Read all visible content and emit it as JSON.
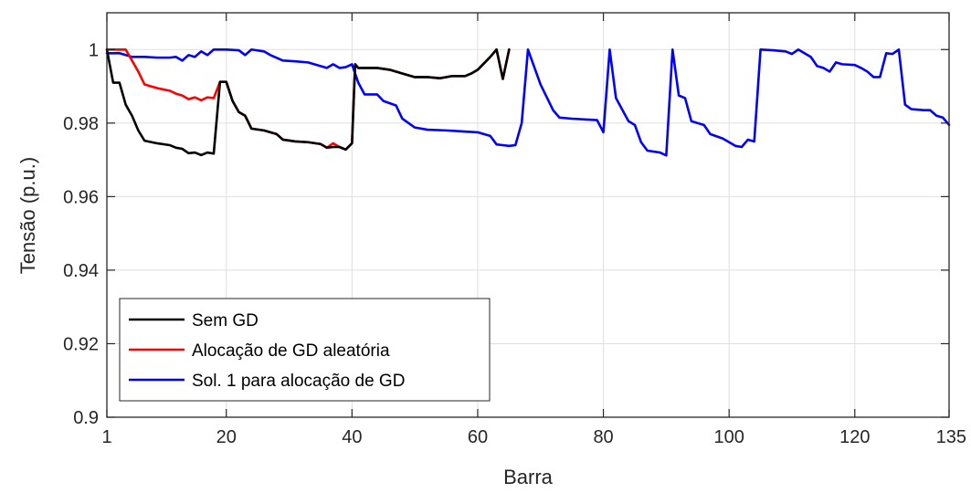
{
  "chart_data": {
    "type": "line",
    "xlabel": "Barra",
    "ylabel": "Tensão (p.u.)",
    "xlim": [
      1,
      135
    ],
    "ylim": [
      0.9,
      1.01
    ],
    "x_ticks": [
      1,
      20,
      40,
      60,
      80,
      100,
      120,
      135
    ],
    "y_ticks": [
      0.9,
      0.92,
      0.94,
      0.96,
      0.98,
      1.0
    ],
    "y_tick_labels": [
      "0.9",
      "0.92",
      "0.94",
      "0.96",
      "0.98",
      "1"
    ],
    "grid": true,
    "legend_position": "bottom-left",
    "series": [
      {
        "name": "Sem GD",
        "color": "#000000",
        "points": [
          [
            1,
            1.0
          ],
          [
            2,
            0.991
          ],
          [
            3,
            0.991
          ],
          [
            4,
            0.985
          ],
          [
            5,
            0.982
          ],
          [
            6,
            0.978
          ],
          [
            7,
            0.9752
          ],
          [
            9,
            0.9745
          ],
          [
            11,
            0.974
          ],
          [
            12,
            0.9733
          ],
          [
            13,
            0.973
          ],
          [
            14,
            0.9718
          ],
          [
            15,
            0.972
          ],
          [
            16,
            0.9713
          ],
          [
            17,
            0.972
          ],
          [
            18,
            0.9717
          ],
          [
            19,
            0.9912
          ],
          [
            20,
            0.9912
          ],
          [
            21,
            0.986
          ],
          [
            22,
            0.983
          ],
          [
            23,
            0.982
          ],
          [
            24,
            0.9785
          ],
          [
            26,
            0.978
          ],
          [
            28,
            0.977
          ],
          [
            29,
            0.9755
          ],
          [
            31,
            0.975
          ],
          [
            33,
            0.9748
          ],
          [
            35,
            0.9743
          ],
          [
            36,
            0.9733
          ],
          [
            37,
            0.9735
          ],
          [
            38,
            0.9735
          ],
          [
            39,
            0.9728
          ],
          [
            40,
            0.9745
          ],
          [
            40.5,
            0.996
          ],
          [
            41,
            0.995
          ],
          [
            43,
            0.995
          ],
          [
            44,
            0.995
          ],
          [
            46,
            0.9945
          ],
          [
            48,
            0.9935
          ],
          [
            50,
            0.9925
          ],
          [
            52,
            0.9925
          ],
          [
            54,
            0.9922
          ],
          [
            56,
            0.9928
          ],
          [
            58,
            0.9928
          ],
          [
            59,
            0.9935
          ],
          [
            60,
            0.9945
          ],
          [
            62,
            0.998
          ],
          [
            63,
            1.0
          ],
          [
            64,
            0.992
          ],
          [
            65,
            1.0
          ]
        ]
      },
      {
        "name": "Alocação de GD aleatória",
        "color": "#ff0000",
        "points": [
          [
            1,
            1.0
          ],
          [
            2,
            1.0
          ],
          [
            3,
            1.0
          ],
          [
            4,
            1.0
          ],
          [
            5,
            0.997
          ],
          [
            6,
            0.994
          ],
          [
            7,
            0.9905
          ],
          [
            9,
            0.9895
          ],
          [
            11,
            0.9888
          ],
          [
            12,
            0.988
          ],
          [
            13,
            0.9875
          ],
          [
            14,
            0.9865
          ],
          [
            15,
            0.987
          ],
          [
            16,
            0.9862
          ],
          [
            17,
            0.987
          ],
          [
            18,
            0.9868
          ],
          [
            19,
            0.9912
          ],
          [
            20,
            0.9912
          ],
          [
            21,
            0.986
          ],
          [
            22,
            0.983
          ],
          [
            23,
            0.982
          ],
          [
            24,
            0.9785
          ],
          [
            26,
            0.978
          ],
          [
            28,
            0.977
          ],
          [
            29,
            0.9755
          ],
          [
            31,
            0.975
          ],
          [
            33,
            0.9748
          ],
          [
            35,
            0.9743
          ],
          [
            36,
            0.9733
          ],
          [
            37,
            0.9745
          ],
          [
            38,
            0.9735
          ],
          [
            39,
            0.9728
          ],
          [
            40,
            0.9745
          ],
          [
            40.5,
            0.996
          ],
          [
            41,
            0.995
          ],
          [
            43,
            0.995
          ],
          [
            44,
            0.995
          ],
          [
            46,
            0.9945
          ],
          [
            48,
            0.9935
          ],
          [
            50,
            0.9925
          ],
          [
            52,
            0.9925
          ],
          [
            54,
            0.9922
          ],
          [
            56,
            0.9928
          ],
          [
            58,
            0.9928
          ],
          [
            59,
            0.9935
          ],
          [
            60,
            0.9945
          ],
          [
            62,
            0.998
          ],
          [
            63,
            1.0
          ],
          [
            64,
            0.992
          ],
          [
            65,
            1.0
          ]
        ]
      },
      {
        "name": "Sol. 1 para alocação de GD",
        "color": "#0000ff",
        "points": [
          [
            1,
            0.999
          ],
          [
            2,
            0.999
          ],
          [
            3,
            0.999
          ],
          [
            4,
            0.9985
          ],
          [
            5,
            0.998
          ],
          [
            7,
            0.998
          ],
          [
            9,
            0.9978
          ],
          [
            11,
            0.9978
          ],
          [
            12,
            0.998
          ],
          [
            13,
            0.997
          ],
          [
            14,
            0.9985
          ],
          [
            15,
            0.998
          ],
          [
            16,
            0.9995
          ],
          [
            17,
            0.9985
          ],
          [
            18,
            1.0
          ],
          [
            20,
            1.0
          ],
          [
            22,
            0.9998
          ],
          [
            23,
            0.9985
          ],
          [
            24,
            1.0
          ],
          [
            26,
            0.9995
          ],
          [
            27,
            0.9985
          ],
          [
            29,
            0.997
          ],
          [
            31,
            0.9968
          ],
          [
            33,
            0.9965
          ],
          [
            35,
            0.9955
          ],
          [
            36,
            0.995
          ],
          [
            37,
            0.996
          ],
          [
            38,
            0.995
          ],
          [
            39,
            0.9952
          ],
          [
            40,
            0.996
          ],
          [
            41,
            0.991
          ],
          [
            42,
            0.9878
          ],
          [
            44,
            0.9878
          ],
          [
            45,
            0.986
          ],
          [
            47,
            0.9848
          ],
          [
            48,
            0.9812
          ],
          [
            50,
            0.9788
          ],
          [
            52,
            0.9782
          ],
          [
            55,
            0.978
          ],
          [
            57,
            0.9778
          ],
          [
            60,
            0.9775
          ],
          [
            62,
            0.9765
          ],
          [
            63,
            0.9742
          ],
          [
            64,
            0.974
          ],
          [
            65,
            0.9738
          ],
          [
            66,
            0.974
          ],
          [
            67,
            0.98
          ],
          [
            68,
            1.0
          ],
          [
            70,
            0.9905
          ],
          [
            72,
            0.9835
          ],
          [
            73,
            0.9815
          ],
          [
            75,
            0.9812
          ],
          [
            77,
            0.981
          ],
          [
            79,
            0.9808
          ],
          [
            80,
            0.9775
          ],
          [
            81,
            1.0
          ],
          [
            82,
            0.9868
          ],
          [
            84,
            0.9805
          ],
          [
            85,
            0.9795
          ],
          [
            86,
            0.9748
          ],
          [
            87,
            0.9725
          ],
          [
            89,
            0.972
          ],
          [
            90,
            0.9712
          ],
          [
            91,
            1.0
          ],
          [
            92,
            0.9875
          ],
          [
            93,
            0.9868
          ],
          [
            94,
            0.9805
          ],
          [
            96,
            0.9795
          ],
          [
            97,
            0.977
          ],
          [
            99,
            0.9758
          ],
          [
            101,
            0.9738
          ],
          [
            102,
            0.9735
          ],
          [
            103,
            0.9755
          ],
          [
            104,
            0.975
          ],
          [
            105,
            1.0
          ],
          [
            107,
            0.9998
          ],
          [
            109,
            0.9995
          ],
          [
            110,
            0.9988
          ],
          [
            111,
            1.0
          ],
          [
            113,
            0.998
          ],
          [
            114,
            0.9955
          ],
          [
            115,
            0.995
          ],
          [
            116,
            0.994
          ],
          [
            117,
            0.9965
          ],
          [
            118,
            0.996
          ],
          [
            120,
            0.9958
          ],
          [
            121,
            0.995
          ],
          [
            122,
            0.994
          ],
          [
            123,
            0.9925
          ],
          [
            124,
            0.9925
          ],
          [
            125,
            0.999
          ],
          [
            126,
            0.9988
          ],
          [
            127,
            1.0
          ],
          [
            128,
            0.985
          ],
          [
            129,
            0.9838
          ],
          [
            131,
            0.9835
          ],
          [
            132,
            0.9835
          ],
          [
            133,
            0.982
          ],
          [
            134,
            0.9815
          ],
          [
            135,
            0.9795
          ]
        ]
      }
    ]
  }
}
